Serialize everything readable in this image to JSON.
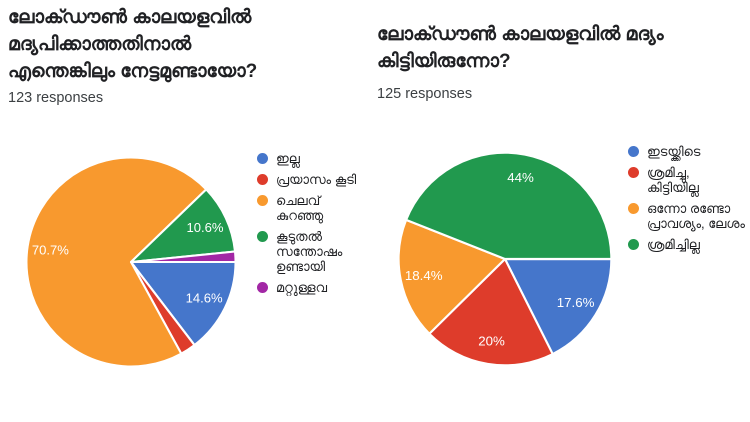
{
  "page": {
    "background_color": "#ffffff",
    "source_ui": "form-responses-summary"
  },
  "chart_data": [
    {
      "type": "pie",
      "title": "ലോക്ഡൗൺ കാലയളവിൽ മദ്യപിക്കാത്തതിനാൽ എന്തെങ്കിലും നേട്ടമുണ്ടായോ?",
      "title_lines": "ലോക്ഡൗൺ കാലയളവിൽ\nമദ്യപിക്കാത്തതിനാൽ\nഎന്തെങ്കിലും നേട്ടമുണ്ടായോ?",
      "responses_label": "123 responses",
      "responses": 123,
      "legend_position": "right",
      "direction": "clockwise",
      "start_angle_deg_clockwise_from_top": 90,
      "slice_label_color": "#ffffff",
      "slices": [
        {
          "legend": "ഇല്ല",
          "value_pct": 14.6,
          "slice_label": "14.6%",
          "color": "#4576CB"
        },
        {
          "legend": "പ്രയാസം കൂടി",
          "value_pct": 2.4,
          "slice_label": "",
          "color": "#DE3C2B"
        },
        {
          "legend": "ചെലവ്\nകുറഞ്ഞു",
          "value_pct": 70.7,
          "slice_label": "70.7%",
          "color": "#F8992E"
        },
        {
          "legend": "കൂടുതൽ\nസന്തോഷം\nഉണ്ടായി",
          "value_pct": 10.6,
          "slice_label": "10.6%",
          "color": "#21994E"
        },
        {
          "legend": "മറ്റുള്ളവ",
          "value_pct": 1.6,
          "slice_label": "",
          "color": "#A227A5"
        }
      ]
    },
    {
      "type": "pie",
      "title": "ലോക്ഡൗൺ കാലയളവിൽ മദ്യം കിട്ടിയിരുന്നോ?",
      "title_lines": "ലോക്ഡൗൺ കാലയളവിൽ മദ്യം\nകിട്ടിയിരുന്നോ?",
      "responses_label": "125 responses",
      "responses": 125,
      "legend_position": "right",
      "direction": "clockwise",
      "start_angle_deg_clockwise_from_top": 90,
      "slice_label_color": "#ffffff",
      "slices": [
        {
          "legend": "ഇടയ്ക്കിടെ",
          "value_pct": 17.6,
          "slice_label": "17.6%",
          "color": "#4576CB"
        },
        {
          "legend": "ശ്രമിച്ചു,\nകിട്ടിയില്ല",
          "value_pct": 20,
          "slice_label": "20%",
          "color": "#DE3C2B"
        },
        {
          "legend": "ഒന്നോ രണ്ടോ\nപ്രാവശ്യം, ലേശം",
          "value_pct": 18.4,
          "slice_label": "18.4%",
          "color": "#F8992E"
        },
        {
          "legend": "ശ്രമിച്ചില്ല",
          "value_pct": 44,
          "slice_label": "44%",
          "color": "#21994E"
        }
      ]
    }
  ]
}
